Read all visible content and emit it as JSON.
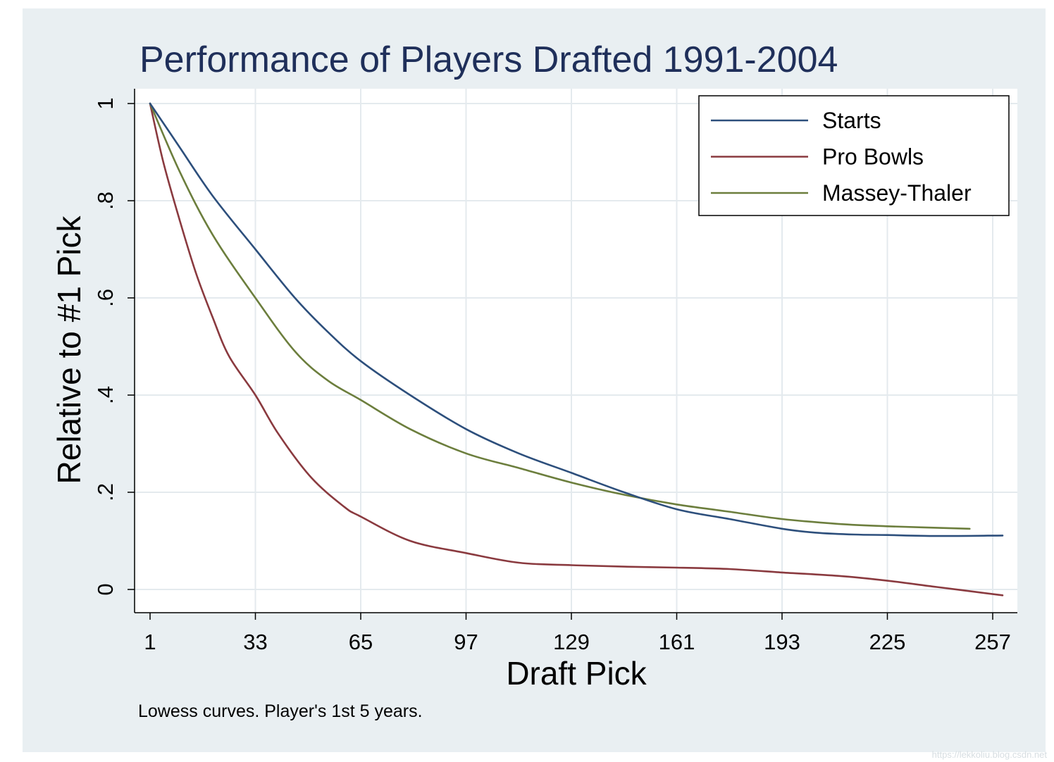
{
  "chart_data": {
    "type": "line",
    "title": "Performance of Players Drafted 1991-2004",
    "xlabel": "Draft Pick",
    "ylabel": "Relative to #1 Pick",
    "xlim": [
      1,
      262
    ],
    "ylim": [
      -0.05,
      1.03
    ],
    "xticks": [
      1,
      33,
      65,
      97,
      129,
      161,
      193,
      225,
      257
    ],
    "xtick_labels": [
      "1",
      "33",
      "65",
      "97",
      "129",
      "161",
      "193",
      "225",
      "257"
    ],
    "yticks": [
      0,
      0.2,
      0.4,
      0.6,
      0.8,
      1
    ],
    "ytick_labels": [
      "0",
      ".2",
      ".4",
      ".6",
      ".8",
      "1"
    ],
    "grid": true,
    "legend_position": "top-right",
    "note": "Lowess curves. Player's 1st 5 years.",
    "series": [
      {
        "name": "Starts",
        "color": "#2d4f7c",
        "x": [
          1,
          10,
          20,
          33,
          45,
          55,
          65,
          80,
          97,
          113,
          129,
          145,
          161,
          177,
          193,
          203,
          215,
          225,
          240,
          260
        ],
        "y": [
          1.0,
          0.91,
          0.81,
          0.7,
          0.6,
          0.53,
          0.47,
          0.4,
          0.33,
          0.28,
          0.24,
          0.2,
          0.165,
          0.145,
          0.125,
          0.117,
          0.113,
          0.112,
          0.11,
          0.111
        ]
      },
      {
        "name": "Pro Bowls",
        "color": "#8a3a3f",
        "x": [
          1,
          5,
          10,
          15,
          20,
          25,
          33,
          40,
          50,
          60,
          65,
          80,
          97,
          113,
          129,
          145,
          161,
          177,
          193,
          210,
          225,
          240,
          260
        ],
        "y": [
          1.0,
          0.88,
          0.76,
          0.65,
          0.56,
          0.48,
          0.4,
          0.32,
          0.23,
          0.17,
          0.15,
          0.1,
          0.075,
          0.055,
          0.05,
          0.047,
          0.045,
          0.042,
          0.035,
          0.028,
          0.018,
          0.005,
          -0.012
        ]
      },
      {
        "name": "Massey-Thaler",
        "color": "#6c7e3d",
        "x": [
          1,
          10,
          20,
          33,
          45,
          55,
          65,
          80,
          97,
          113,
          129,
          145,
          161,
          177,
          193,
          210,
          225,
          250
        ],
        "y": [
          1.0,
          0.86,
          0.73,
          0.6,
          0.49,
          0.43,
          0.39,
          0.33,
          0.28,
          0.25,
          0.22,
          0.195,
          0.175,
          0.16,
          0.145,
          0.135,
          0.13,
          0.125
        ]
      }
    ]
  },
  "watermark": "https://lekkoliu.blog.csdn.net",
  "colors": {
    "background": "#e9eff2",
    "plot": "#ffffff",
    "grid": "#e4eaee",
    "title": "#1f2f5a"
  }
}
